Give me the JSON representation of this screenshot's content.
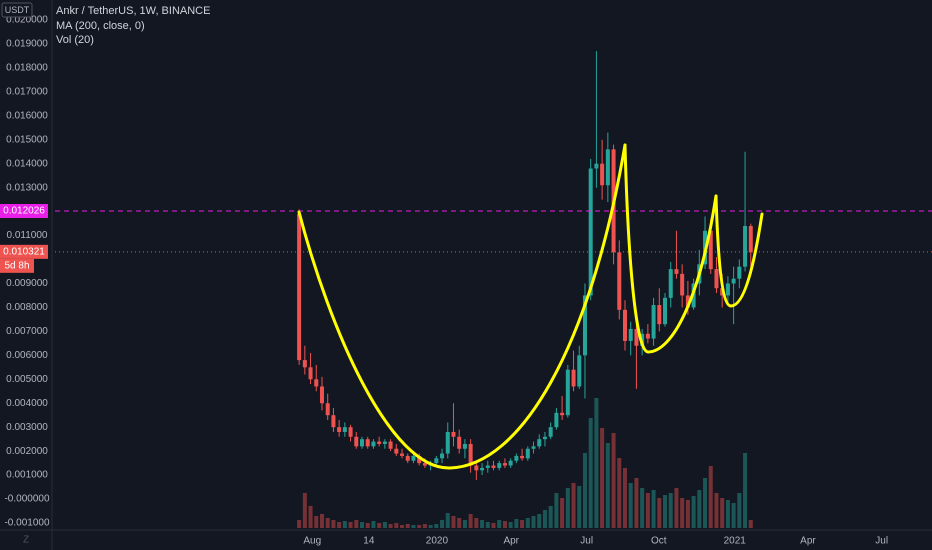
{
  "chart_data": {
    "type": "candlestick",
    "currency": "USDT",
    "title": "Ankr / TetherUS, 1W, BINANCE",
    "indicators": [
      "MA (200, close, 0)",
      "Vol (20)"
    ],
    "up_color": "#26a69a",
    "down_color": "#ef5350",
    "grid": true,
    "open": [
      0.0119,
      0.0058,
      0.0055,
      0.005,
      0.0047,
      0.004,
      0.0035,
      0.003,
      0.0028,
      0.003,
      0.0026,
      0.0022,
      0.0025,
      0.0022,
      0.0024,
      0.0023,
      0.0024,
      0.0021,
      0.0019,
      0.0018,
      0.0016,
      0.0018,
      0.0015,
      0.0014,
      0.0015,
      0.0017,
      0.0019,
      0.0028,
      0.0026,
      0.0021,
      0.0023,
      0.0014,
      0.0012,
      0.0013,
      0.0014,
      0.0013,
      0.0015,
      0.0014,
      0.0016,
      0.0018,
      0.0017,
      0.0021,
      0.0022,
      0.0025,
      0.0026,
      0.003,
      0.0036,
      0.0035,
      0.0054,
      0.0047,
      0.006,
      0.0085,
      0.0138,
      0.014,
      0.0131,
      0.0146,
      0.0103,
      0.0079,
      0.0066,
      0.0071,
      0.0064,
      0.0069,
      0.0067,
      0.0081,
      0.0073,
      0.0084,
      0.0096,
      0.0094,
      0.0085,
      0.008,
      0.009,
      0.0098,
      0.0112,
      0.0096,
      0.0088,
      0.0085,
      0.009,
      0.0092,
      0.0097,
      0.0114
    ],
    "high": [
      0.0121,
      0.0064,
      0.0061,
      0.0056,
      0.0051,
      0.0044,
      0.0038,
      0.0033,
      0.0032,
      0.0031,
      0.0028,
      0.0026,
      0.0026,
      0.0025,
      0.0026,
      0.0025,
      0.0025,
      0.0023,
      0.0021,
      0.0019,
      0.0019,
      0.0019,
      0.0017,
      0.0016,
      0.0018,
      0.0021,
      0.0032,
      0.004,
      0.0029,
      0.0025,
      0.0025,
      0.0016,
      0.0015,
      0.0016,
      0.0016,
      0.0016,
      0.0017,
      0.0017,
      0.0019,
      0.0021,
      0.0022,
      0.0024,
      0.0027,
      0.0028,
      0.0032,
      0.0038,
      0.0043,
      0.0056,
      0.0062,
      0.0064,
      0.009,
      0.0142,
      0.0187,
      0.015,
      0.0153,
      0.0148,
      0.0108,
      0.0083,
      0.0074,
      0.0077,
      0.0071,
      0.0073,
      0.0084,
      0.0088,
      0.0086,
      0.0099,
      0.0112,
      0.0098,
      0.0091,
      0.0092,
      0.0104,
      0.0118,
      0.0117,
      0.0101,
      0.0094,
      0.0093,
      0.0097,
      0.01,
      0.0145,
      0.0115
    ],
    "low": [
      0.0056,
      0.0052,
      0.0048,
      0.0045,
      0.0037,
      0.0033,
      0.0028,
      0.0026,
      0.0026,
      0.0024,
      0.0021,
      0.0021,
      0.0021,
      0.0021,
      0.0022,
      0.0021,
      0.002,
      0.0018,
      0.0017,
      0.0015,
      0.0015,
      0.0014,
      0.0013,
      0.0012,
      0.0014,
      0.0015,
      0.0017,
      0.0022,
      0.0019,
      0.0017,
      0.0011,
      0.0008,
      0.001,
      0.0011,
      0.0012,
      0.0012,
      0.0013,
      0.0013,
      0.0015,
      0.0016,
      0.0016,
      0.0019,
      0.0021,
      0.0022,
      0.0025,
      0.0029,
      0.0033,
      0.0034,
      0.0045,
      0.0046,
      0.0042,
      0.0083,
      0.013,
      0.0125,
      0.0124,
      0.0098,
      0.0075,
      0.0062,
      0.006,
      0.0046,
      0.006,
      0.0065,
      0.0064,
      0.007,
      0.0072,
      0.008,
      0.0092,
      0.008,
      0.0077,
      0.0079,
      0.0085,
      0.0096,
      0.0094,
      0.0086,
      0.008,
      0.0081,
      0.0073,
      0.0088,
      0.0095,
      0.0097
    ],
    "close": [
      0.0058,
      0.0055,
      0.005,
      0.0047,
      0.004,
      0.0035,
      0.003,
      0.0028,
      0.003,
      0.0026,
      0.0022,
      0.0025,
      0.0022,
      0.0024,
      0.0023,
      0.0024,
      0.0021,
      0.0019,
      0.0018,
      0.0016,
      0.0018,
      0.0015,
      0.0014,
      0.0015,
      0.0017,
      0.0019,
      0.0028,
      0.0026,
      0.0021,
      0.0023,
      0.0014,
      0.0012,
      0.0013,
      0.0014,
      0.0013,
      0.0015,
      0.0014,
      0.0016,
      0.0018,
      0.0017,
      0.0021,
      0.0022,
      0.0025,
      0.0026,
      0.003,
      0.0036,
      0.0035,
      0.0054,
      0.0047,
      0.006,
      0.0085,
      0.0138,
      0.014,
      0.0131,
      0.0146,
      0.0103,
      0.0079,
      0.0066,
      0.0071,
      0.0064,
      0.0069,
      0.0067,
      0.0081,
      0.0073,
      0.0084,
      0.0096,
      0.0094,
      0.0085,
      0.008,
      0.009,
      0.0098,
      0.0112,
      0.0096,
      0.0088,
      0.0085,
      0.009,
      0.0092,
      0.0097,
      0.0114,
      0.0103
    ],
    "volume": [
      8,
      35,
      22,
      12,
      14,
      10,
      8,
      6,
      7,
      6,
      8,
      6,
      5,
      7,
      5,
      6,
      4,
      5,
      3,
      4,
      3,
      3,
      4,
      3,
      4,
      8,
      15,
      12,
      10,
      8,
      14,
      10,
      8,
      6,
      5,
      8,
      7,
      6,
      9,
      8,
      10,
      12,
      14,
      18,
      22,
      35,
      30,
      40,
      45,
      42,
      75,
      110,
      130,
      100,
      85,
      95,
      70,
      60,
      45,
      50,
      40,
      35,
      38,
      30,
      33,
      35,
      40,
      30,
      28,
      32,
      38,
      50,
      62,
      35,
      30,
      28,
      25,
      35,
      75,
      8
    ],
    "xlim": [
      -42.7,
      110.7
    ],
    "xticks": [
      {
        "value": 2.3,
        "label": "Aug"
      },
      {
        "value": 12.2,
        "label": "14"
      },
      {
        "value": 24.1,
        "label": "2020"
      },
      {
        "value": 37.1,
        "label": "Apr"
      },
      {
        "value": 50.3,
        "label": "Jul"
      },
      {
        "value": 62.9,
        "label": "Oct"
      },
      {
        "value": 76.2,
        "label": "2021"
      },
      {
        "value": 89,
        "label": "Apr"
      },
      {
        "value": 101.9,
        "label": "Jul"
      }
    ],
    "ylim": [
      -0.001,
      0.02
    ],
    "yticks": [
      {
        "value": 0.02,
        "label": "0.020000"
      },
      {
        "value": 0.019,
        "label": "0.019000"
      },
      {
        "value": 0.018,
        "label": "0.018000"
      },
      {
        "value": 0.017,
        "label": "0.017000"
      },
      {
        "value": 0.016,
        "label": "0.016000"
      },
      {
        "value": 0.015,
        "label": "0.015000"
      },
      {
        "value": 0.014,
        "label": "0.014000"
      },
      {
        "value": 0.013,
        "label": "0.013000"
      },
      {
        "value": 0.011,
        "label": "0.011000"
      },
      {
        "value": 0.009,
        "label": "0.009000"
      },
      {
        "value": 0.008,
        "label": "0.008000"
      },
      {
        "value": 0.007,
        "label": "0.007000"
      },
      {
        "value": 0.006,
        "label": "0.006000"
      },
      {
        "value": 0.005,
        "label": "0.005000"
      },
      {
        "value": 0.004,
        "label": "0.004000"
      },
      {
        "value": 0.003,
        "label": "0.003000"
      },
      {
        "value": 0.002,
        "label": "0.002000"
      },
      {
        "value": 0.001,
        "label": "0.001000"
      },
      {
        "value": 0,
        "label": "-0.000000"
      },
      {
        "value": -0.001,
        "label": "-0.001000"
      }
    ],
    "price_lines": [
      {
        "value": 0.012026,
        "color": "#e91ee9",
        "dash": "5 4"
      },
      {
        "value": 0.010321,
        "color": "#ef5350",
        "dash": "1 3",
        "countdown": "5d 8h"
      }
    ]
  }
}
